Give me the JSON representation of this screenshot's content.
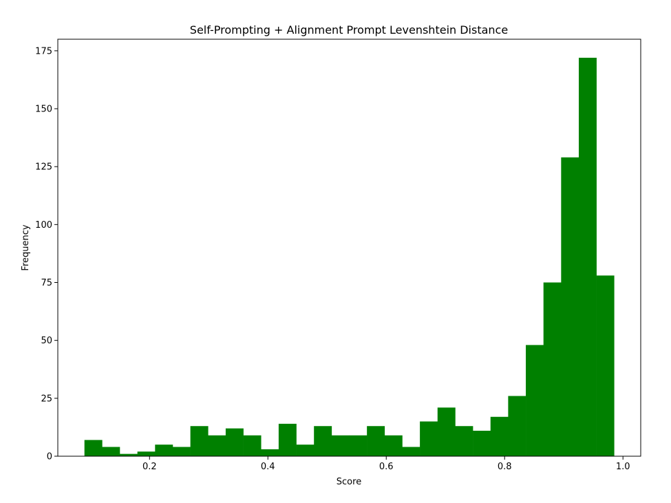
{
  "chart_data": {
    "type": "bar",
    "title": "Self-Prompting + Alignment Prompt Levenshtein Distance",
    "xlabel": "Score",
    "ylabel": "Frequency",
    "xlim": [
      0.045,
      1.03
    ],
    "ylim": [
      0,
      180
    ],
    "xticks": [
      0.2,
      0.4,
      0.6,
      0.8,
      1.0
    ],
    "xtick_labels": [
      "0.2",
      "0.4",
      "0.6",
      "0.8",
      "1.0"
    ],
    "yticks": [
      0,
      25,
      50,
      75,
      100,
      125,
      150,
      175
    ],
    "ytick_labels": [
      "0",
      "25",
      "50",
      "75",
      "100",
      "125",
      "150",
      "175"
    ],
    "bin_start": 0.09,
    "bin_end": 0.985,
    "values": [
      7,
      4,
      1,
      2,
      5,
      4,
      13,
      9,
      12,
      9,
      3,
      14,
      5,
      13,
      9,
      9,
      13,
      9,
      4,
      15,
      21,
      13,
      11,
      17,
      26,
      48,
      75,
      129,
      172,
      78
    ],
    "grid": false,
    "color": "#008000"
  }
}
